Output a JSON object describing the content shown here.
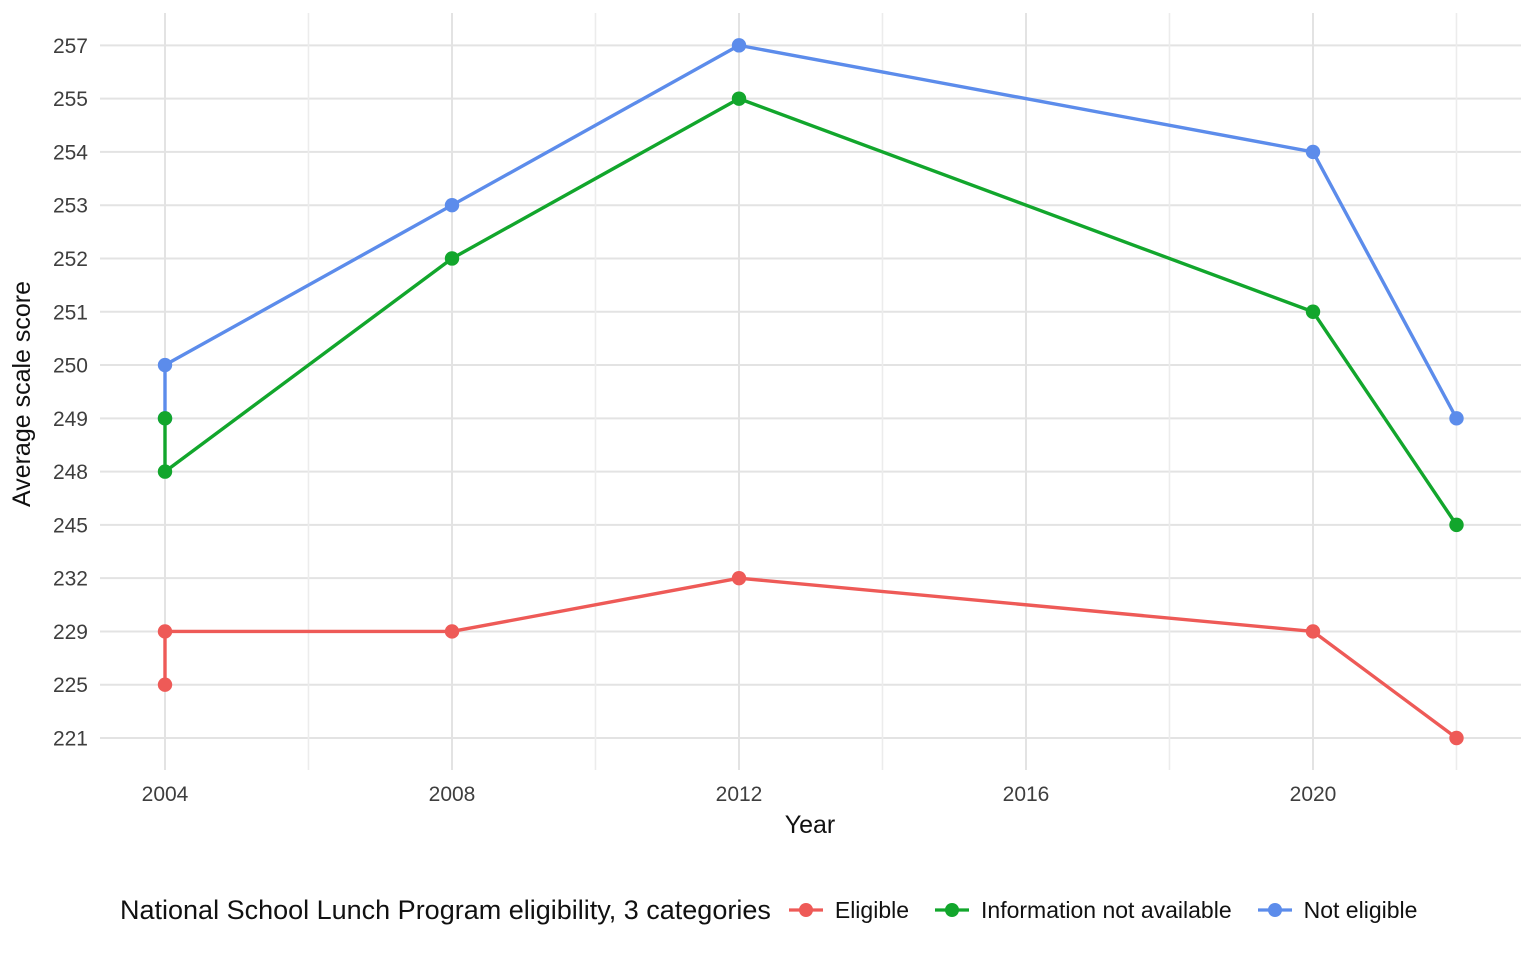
{
  "figure": {
    "background": "#FFFFFF"
  },
  "axes": {
    "x_title": "Year",
    "y_title": "Average scale score"
  },
  "legend": {
    "title": "National School Lunch Program eligibility, 3 categories"
  },
  "chart_data": {
    "type": "line",
    "title": "",
    "xlabel": "Year",
    "ylabel": "Average scale score",
    "x_axis_type": "continuous",
    "x_range": [
      2004,
      2022
    ],
    "x_ticks": [
      2004,
      2008,
      2012,
      2016,
      2020
    ],
    "x_minor_gridlines": [
      2006,
      2010,
      2014,
      2018,
      2022
    ],
    "y_axis_type": "discrete",
    "y_levels": [
      221,
      225,
      229,
      232,
      245,
      248,
      249,
      250,
      251,
      252,
      253,
      254,
      255,
      257
    ],
    "grid": true,
    "legend_position": "bottom",
    "legend_title": "National School Lunch Program eligibility, 3 categories",
    "series": [
      {
        "name": "Eligible",
        "color": "#EE5A57",
        "points": [
          [
            2004,
            225
          ],
          [
            2004,
            229
          ],
          [
            2008,
            229
          ],
          [
            2012,
            232
          ],
          [
            2020,
            229
          ],
          [
            2022,
            221
          ]
        ]
      },
      {
        "name": "Information not available",
        "color": "#12A62C",
        "points": [
          [
            2004,
            249
          ],
          [
            2004,
            248
          ],
          [
            2008,
            252
          ],
          [
            2012,
            255
          ],
          [
            2020,
            251
          ],
          [
            2022,
            245
          ]
        ]
      },
      {
        "name": "Not eligible",
        "color": "#5C8CEB",
        "points": [
          [
            2004,
            249
          ],
          [
            2004,
            250
          ],
          [
            2008,
            253
          ],
          [
            2012,
            257
          ],
          [
            2020,
            254
          ],
          [
            2022,
            249
          ]
        ]
      }
    ],
    "colors": {
      "grid_major": "#E3E3E3",
      "grid_minor": "#ECECEC",
      "tick_label": "#3E3E3E",
      "axis_title": "#111111"
    }
  }
}
